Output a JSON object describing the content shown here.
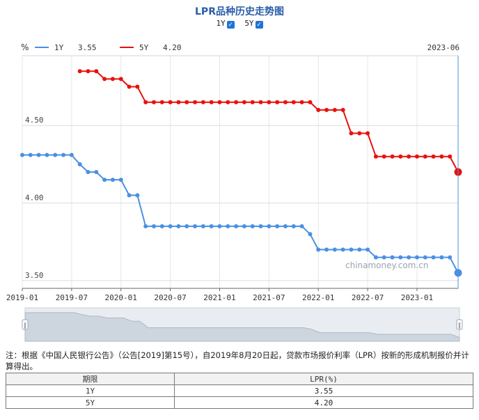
{
  "title": "LPR品种历史走势图",
  "toggles": [
    {
      "label": "1Y",
      "checked": true
    },
    {
      "label": "5Y",
      "checked": true
    }
  ],
  "legend": {
    "unit": "%",
    "items": [
      {
        "name": "1Y",
        "value": "3.55",
        "color": "#4a90e2"
      },
      {
        "name": "5Y",
        "value": "4.20",
        "color": "#e8120c"
      }
    ],
    "cursor_date": "2023-06"
  },
  "watermark": "chinamoney.com.cn",
  "chart_data": {
    "type": "line",
    "x_ticks": [
      "2019-01",
      "2019-07",
      "2020-01",
      "2020-07",
      "2021-01",
      "2021-07",
      "2022-01",
      "2022-07",
      "2023-01"
    ],
    "y_ticks": [
      "3.50",
      "4.00",
      "4.50"
    ],
    "ylim": [
      3.45,
      4.95
    ],
    "xlim": [
      "2019-01",
      "2023-06"
    ],
    "series": [
      {
        "name": "1Y",
        "color": "#4a90e2",
        "x": [
          "2019-01",
          "2019-02",
          "2019-03",
          "2019-04",
          "2019-05",
          "2019-06",
          "2019-07",
          "2019-08",
          "2019-09",
          "2019-10",
          "2019-11",
          "2019-12",
          "2020-01",
          "2020-02",
          "2020-03",
          "2020-04",
          "2020-05",
          "2020-06",
          "2020-07",
          "2020-08",
          "2020-09",
          "2020-10",
          "2020-11",
          "2020-12",
          "2021-01",
          "2021-02",
          "2021-03",
          "2021-04",
          "2021-05",
          "2021-06",
          "2021-07",
          "2021-08",
          "2021-09",
          "2021-10",
          "2021-11",
          "2021-12",
          "2022-01",
          "2022-02",
          "2022-03",
          "2022-04",
          "2022-05",
          "2022-06",
          "2022-07",
          "2022-08",
          "2022-09",
          "2022-10",
          "2022-11",
          "2022-12",
          "2023-01",
          "2023-02",
          "2023-03",
          "2023-04",
          "2023-05",
          "2023-06"
        ],
        "values": [
          4.31,
          4.31,
          4.31,
          4.31,
          4.31,
          4.31,
          4.31,
          4.25,
          4.2,
          4.2,
          4.15,
          4.15,
          4.15,
          4.05,
          4.05,
          3.85,
          3.85,
          3.85,
          3.85,
          3.85,
          3.85,
          3.85,
          3.85,
          3.85,
          3.85,
          3.85,
          3.85,
          3.85,
          3.85,
          3.85,
          3.85,
          3.85,
          3.85,
          3.85,
          3.85,
          3.8,
          3.7,
          3.7,
          3.7,
          3.7,
          3.7,
          3.7,
          3.7,
          3.65,
          3.65,
          3.65,
          3.65,
          3.65,
          3.65,
          3.65,
          3.65,
          3.65,
          3.65,
          3.55
        ]
      },
      {
        "name": "5Y",
        "color": "#e8120c",
        "x": [
          "2019-08",
          "2019-09",
          "2019-10",
          "2019-11",
          "2019-12",
          "2020-01",
          "2020-02",
          "2020-03",
          "2020-04",
          "2020-05",
          "2020-06",
          "2020-07",
          "2020-08",
          "2020-09",
          "2020-10",
          "2020-11",
          "2020-12",
          "2021-01",
          "2021-02",
          "2021-03",
          "2021-04",
          "2021-05",
          "2021-06",
          "2021-07",
          "2021-08",
          "2021-09",
          "2021-10",
          "2021-11",
          "2021-12",
          "2022-01",
          "2022-02",
          "2022-03",
          "2022-04",
          "2022-05",
          "2022-06",
          "2022-07",
          "2022-08",
          "2022-09",
          "2022-10",
          "2022-11",
          "2022-12",
          "2023-01",
          "2023-02",
          "2023-03",
          "2023-04",
          "2023-05",
          "2023-06"
        ],
        "values": [
          4.85,
          4.85,
          4.85,
          4.8,
          4.8,
          4.8,
          4.75,
          4.75,
          4.65,
          4.65,
          4.65,
          4.65,
          4.65,
          4.65,
          4.65,
          4.65,
          4.65,
          4.65,
          4.65,
          4.65,
          4.65,
          4.65,
          4.65,
          4.65,
          4.65,
          4.65,
          4.65,
          4.65,
          4.65,
          4.6,
          4.6,
          4.6,
          4.6,
          4.45,
          4.45,
          4.45,
          4.3,
          4.3,
          4.3,
          4.3,
          4.3,
          4.3,
          4.3,
          4.3,
          4.3,
          4.3,
          4.2
        ]
      }
    ]
  },
  "note": "注：根据《中国人民银行公告》（公告[2019]第15号），自2019年8月20日起，贷款市场报价利率（LPR）按新的形成机制报价并计算得出。",
  "table": {
    "headers": [
      "期限",
      "LPR(%)"
    ],
    "rows": [
      [
        "1Y",
        "3.55"
      ],
      [
        "5Y",
        "4.20"
      ]
    ]
  }
}
